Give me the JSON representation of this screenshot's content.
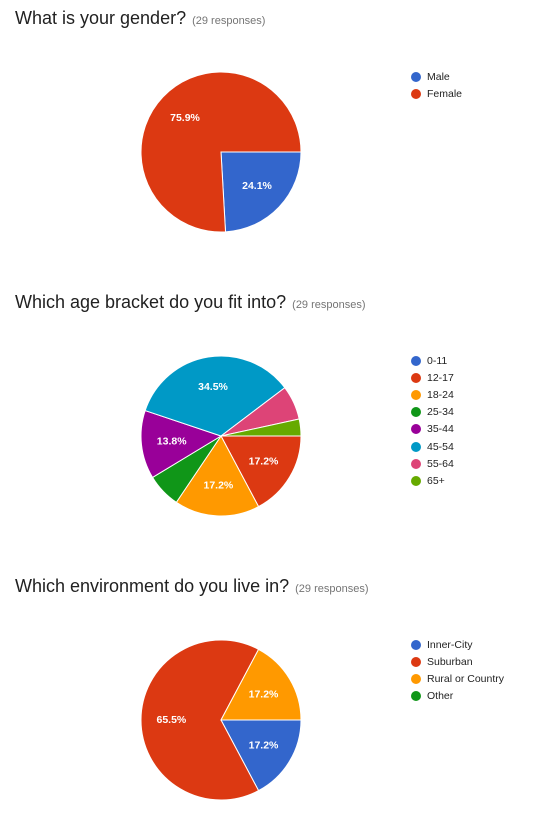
{
  "chart_data": [
    {
      "type": "pie",
      "title": "What is your gender?",
      "responses": "(29 responses)",
      "categories": [
        "Male",
        "Female"
      ],
      "values": [
        24.1,
        75.9
      ],
      "colors": [
        "#3366cc",
        "#dc3912"
      ],
      "labels": [
        "24.1%",
        "75.9%"
      ],
      "legend_position": "right"
    },
    {
      "type": "pie",
      "title": "Which age bracket do you fit into?",
      "responses": "(29 responses)",
      "categories": [
        "0-11",
        "12-17",
        "18-24",
        "25-34",
        "35-44",
        "45-54",
        "55-64",
        "65+"
      ],
      "values": [
        0,
        17.2,
        17.2,
        6.9,
        13.8,
        34.5,
        6.9,
        3.4
      ],
      "colors": [
        "#3366cc",
        "#dc3912",
        "#ff9900",
        "#109618",
        "#990099",
        "#0099c6",
        "#dd4477",
        "#66aa00"
      ],
      "labels": [
        "",
        "17.2%",
        "17.2%",
        "",
        "13.8%",
        "34.5%",
        "",
        ""
      ],
      "legend_position": "right"
    },
    {
      "type": "pie",
      "title": "Which environment do you live in?",
      "responses": "(29 responses)",
      "categories": [
        "Inner-City",
        "Suburban",
        "Rural or Country",
        "Other"
      ],
      "values": [
        17.2,
        65.5,
        17.2,
        0
      ],
      "colors": [
        "#3366cc",
        "#dc3912",
        "#ff9900",
        "#109618"
      ],
      "labels": [
        "17.2%",
        "65.5%",
        "17.2%",
        ""
      ],
      "legend_position": "right"
    }
  ]
}
